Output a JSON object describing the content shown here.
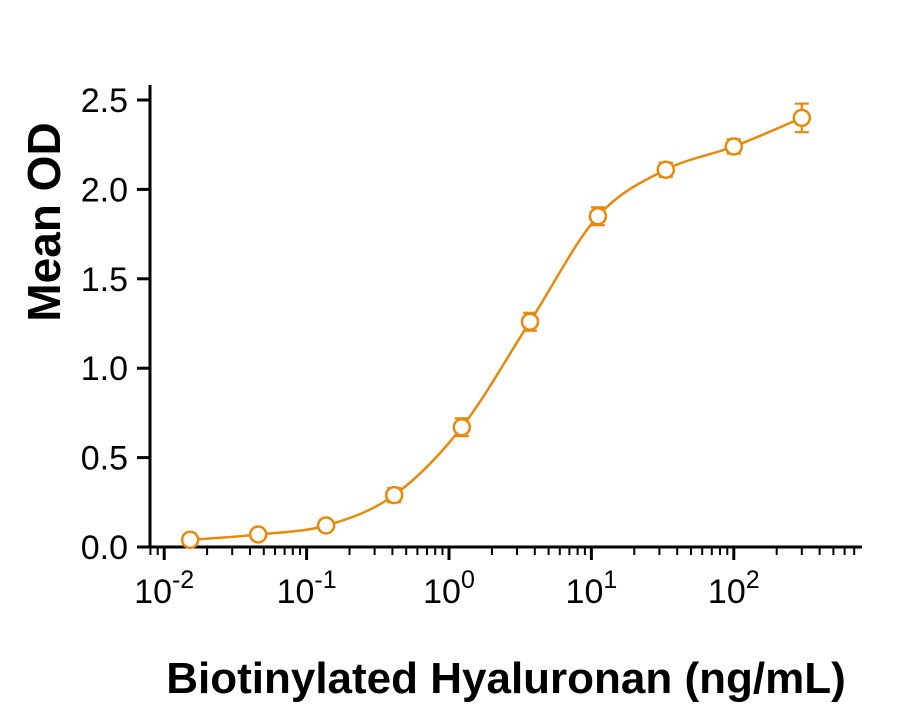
{
  "chart_data": {
    "type": "scatter",
    "title": "",
    "xlabel": "Biotinylated Hyaluronan (ng/mL)",
    "ylabel": "Mean OD",
    "x_scale": "log",
    "xlog_min": -2.1,
    "xlog_max": 2.9,
    "ylim": [
      0,
      2.5
    ],
    "y_ticks": [
      0.0,
      0.5,
      1.0,
      1.5,
      2.0,
      2.5
    ],
    "y_tick_labels": [
      "0.0",
      "0.5",
      "1.0",
      "1.5",
      "2.0",
      "2.5"
    ],
    "x_ticks": [
      {
        "value": 0.01,
        "base": "10",
        "exp": "-2"
      },
      {
        "value": 0.1,
        "base": "10",
        "exp": "-1"
      },
      {
        "value": 1,
        "base": "10",
        "exp": "0"
      },
      {
        "value": 10,
        "base": "10",
        "exp": "1"
      },
      {
        "value": 100,
        "base": "10",
        "exp": "2"
      }
    ],
    "grid": false,
    "legend": "none",
    "series": [
      {
        "name": "Biotinylated Hyaluronan",
        "marker": "open-circle",
        "color": "#E8890C",
        "points": [
          {
            "x": 0.0152,
            "y": 0.04,
            "err": 0.02
          },
          {
            "x": 0.0457,
            "y": 0.07,
            "err": 0.02
          },
          {
            "x": 0.137,
            "y": 0.12,
            "err": 0.03
          },
          {
            "x": 0.412,
            "y": 0.29,
            "err": 0.04
          },
          {
            "x": 1.23,
            "y": 0.67,
            "err": 0.05
          },
          {
            "x": 3.7,
            "y": 1.26,
            "err": 0.05
          },
          {
            "x": 11.1,
            "y": 1.85,
            "err": 0.05
          },
          {
            "x": 33.3,
            "y": 2.11,
            "err": 0.04
          },
          {
            "x": 100,
            "y": 2.24,
            "err": 0.04
          },
          {
            "x": 300,
            "y": 2.4,
            "err": 0.08
          }
        ]
      }
    ],
    "colors": {
      "curve": "#E8890C",
      "axis": "#000000",
      "background": "#FFFFFF"
    }
  }
}
